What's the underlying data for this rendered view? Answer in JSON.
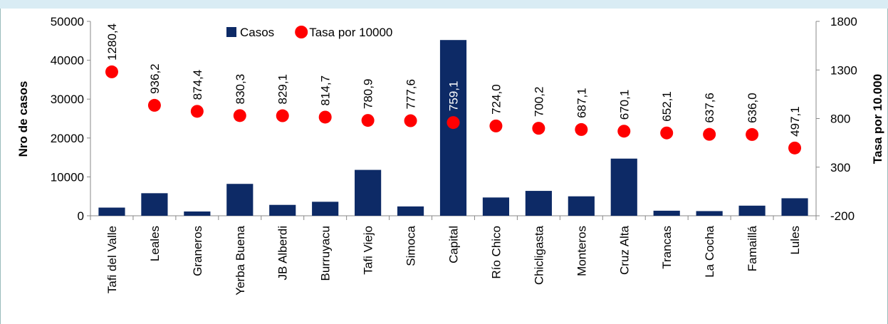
{
  "chart_data": {
    "type": "bar-scatter",
    "ylabel": "Nro de casos",
    "y2label": "Tasa por 10.000",
    "categories": [
      "Tafi del Valle",
      "Leales",
      "Graneros",
      "Yerba Buena",
      "JB Alberdi",
      "Burruyacu",
      "Tafi Viejo",
      "Simoca",
      "Capital",
      "Río Chico",
      "Chicligasta",
      "Monteros",
      "Cruz Alta",
      "Trancas",
      "La Cocha",
      "Famaillá",
      "Lules"
    ],
    "series": [
      {
        "name": "Casos",
        "color": "#0d2a66",
        "kind": "bar",
        "values": [
          2100,
          5800,
          1100,
          8200,
          2800,
          3600,
          11800,
          2400,
          45200,
          4700,
          6400,
          5000,
          14700,
          1300,
          1200,
          2600,
          4500
        ]
      },
      {
        "name": "Tasa por 10000",
        "color": "#ff0000",
        "kind": "dot",
        "axis": "y2",
        "values": [
          1280.4,
          936.2,
          874.4,
          830.3,
          829.1,
          814.7,
          780.9,
          777.6,
          759.1,
          724.0,
          700.2,
          687.1,
          670.1,
          652.1,
          637.6,
          636.0,
          497.1
        ],
        "value_labels": [
          "1280,4",
          "936,2",
          "874,4",
          "830,3",
          "829,1",
          "814,7",
          "780,9",
          "777,6",
          "759,1",
          "724,0",
          "700,2",
          "687,1",
          "670,1",
          "652,1",
          "637,6",
          "636,0",
          "497,1"
        ]
      }
    ],
    "ylim": [
      0,
      50000
    ],
    "yticks": [
      0,
      10000,
      20000,
      30000,
      40000,
      50000
    ],
    "y2lim": [
      -200,
      1800
    ],
    "y2ticks": [
      -200,
      300,
      800,
      1300,
      1800
    ]
  }
}
